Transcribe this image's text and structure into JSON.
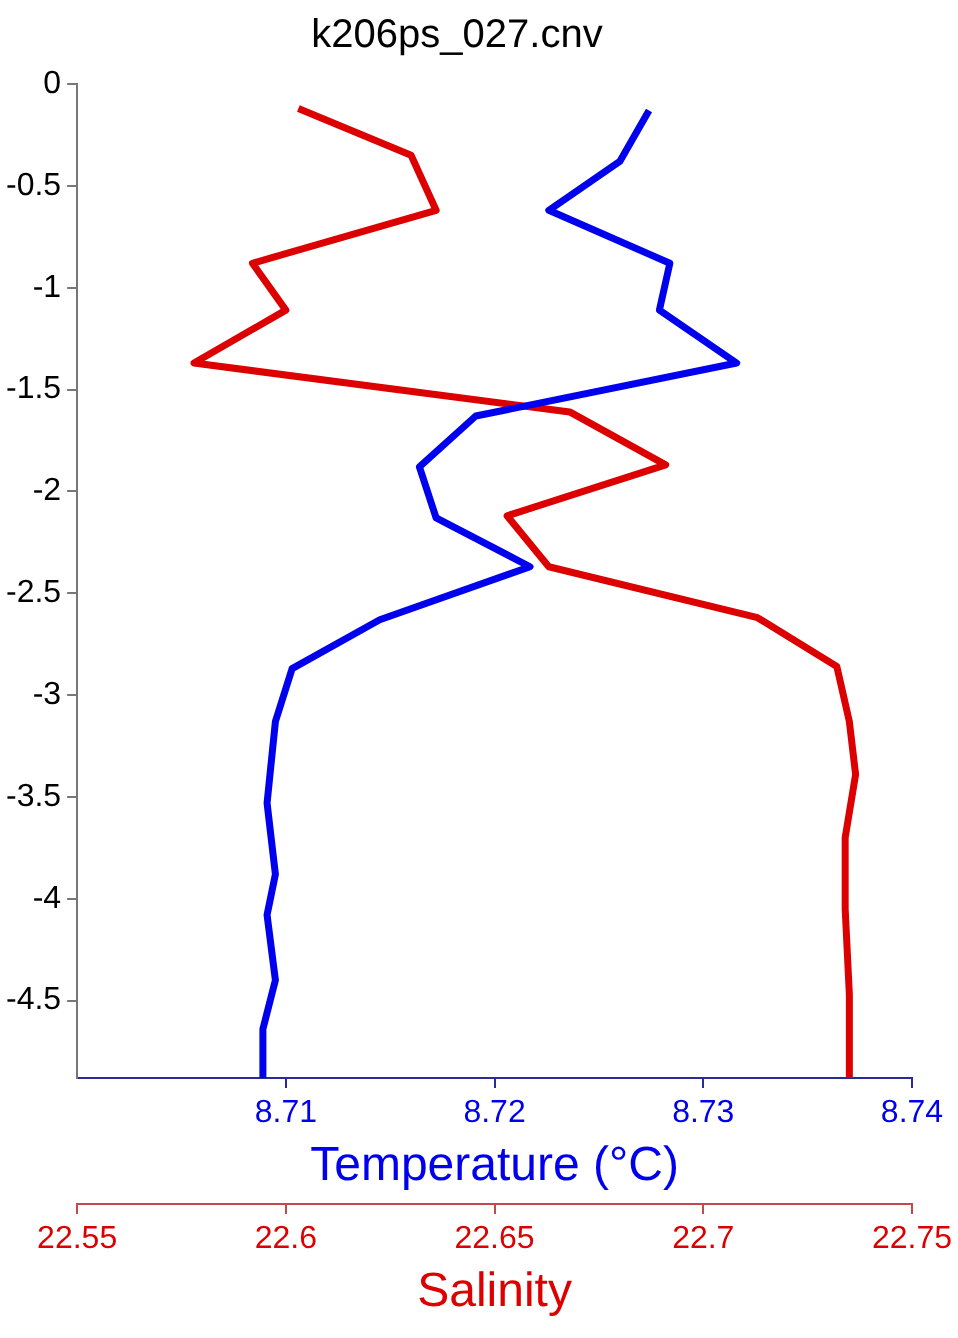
{
  "chart_data": {
    "type": "line",
    "title": "k206ps_027.cnv",
    "xlabel": "Temperature (°C)",
    "x2label": "Salinity",
    "xlim": [
      8.7,
      8.74
    ],
    "xticks": [
      8.71,
      8.72,
      8.73,
      8.74
    ],
    "x2lim": [
      22.55,
      22.75
    ],
    "x2ticks": [
      22.55,
      22.6,
      22.65,
      22.7,
      22.75
    ],
    "ylim": [
      -4.88,
      0
    ],
    "yticks": [
      0,
      -0.5,
      -1,
      -1.5,
      -2,
      -2.5,
      -3,
      -3.5,
      -4,
      -4.5
    ],
    "grid": false,
    "legend": false,
    "marker": "none",
    "line_style": "solid",
    "series": [
      {
        "color": "#0000ee",
        "x": [
          8.7274,
          8.726,
          8.7226,
          8.7284,
          8.7279,
          8.7316,
          8.7191,
          8.7164,
          8.7172,
          8.7217,
          8.7145,
          8.7103,
          8.7095,
          8.7091,
          8.7095,
          8.7091,
          8.7095,
          8.7089,
          8.7089
        ],
        "values": [
          -0.13,
          -0.38,
          -0.62,
          -0.88,
          -1.11,
          -1.37,
          -1.63,
          -1.88,
          -2.13,
          -2.37,
          -2.63,
          -2.87,
          -3.13,
          -3.53,
          -3.88,
          -4.08,
          -4.4,
          -4.64,
          -4.88
        ]
      },
      {
        "color": "#dd0000",
        "axis": "x2",
        "x": [
          22.603,
          22.63,
          22.636,
          22.592,
          22.6,
          22.578,
          22.668,
          22.691,
          22.653,
          22.663,
          22.713,
          22.732,
          22.735,
          22.7365,
          22.734,
          22.734,
          22.735,
          22.735
        ],
        "values": [
          -0.12,
          -0.35,
          -0.62,
          -0.88,
          -1.11,
          -1.37,
          -1.61,
          -1.87,
          -2.12,
          -2.37,
          -2.62,
          -2.86,
          -3.13,
          -3.39,
          -3.7,
          -4.05,
          -4.47,
          -4.88
        ]
      }
    ]
  }
}
